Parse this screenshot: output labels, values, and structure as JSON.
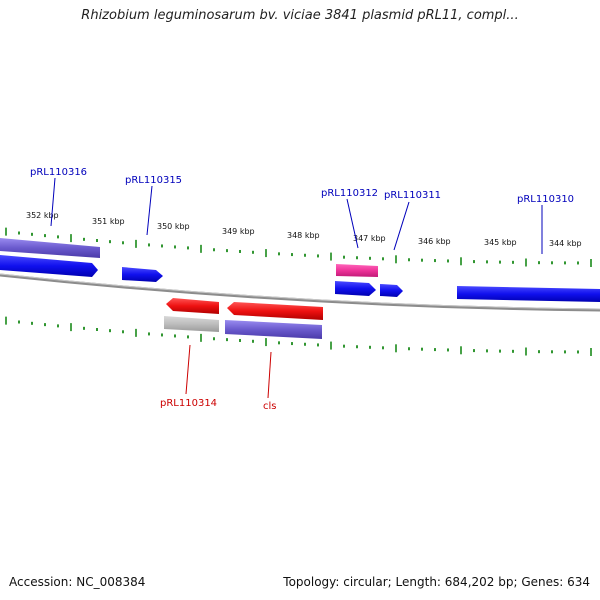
{
  "header": {
    "title": "Rhizobium leguminosarum bv. viciae 3841 plasmid pRL11, compl..."
  },
  "footer": {
    "accession": "Accession: NC_008384",
    "summary": "Topology: circular; Length: 684,202 bp; Genes: 634"
  },
  "colors": {
    "forward_gene": "#1010ee",
    "forward_gene_alt": "#6a5acd",
    "reverse_gene": "#ee1111",
    "reverse_gene_gray": "#bdbdbd",
    "reverse_gene_purple": "#6a5acd",
    "pink_gene": "#ee3399",
    "tick": "#1a8a1a",
    "forward_label": "#0000bb",
    "reverse_label": "#cc0000",
    "backbone": "#8c8c8c"
  },
  "scale": {
    "ticks": [
      {
        "label": "352 kbp"
      },
      {
        "label": "351 kbp"
      },
      {
        "label": "350 kbp"
      },
      {
        "label": "349 kbp"
      },
      {
        "label": "348 kbp"
      },
      {
        "label": "347 kbp"
      },
      {
        "label": "346 kbp"
      },
      {
        "label": "345 kbp"
      },
      {
        "label": "344 kbp"
      }
    ]
  },
  "genes": {
    "labels_forward": [
      "pRL110316",
      "pRL110315",
      "pRL110312",
      "pRL110311",
      "pRL110310"
    ],
    "labels_reverse": [
      "pRL110314",
      "cls"
    ]
  }
}
